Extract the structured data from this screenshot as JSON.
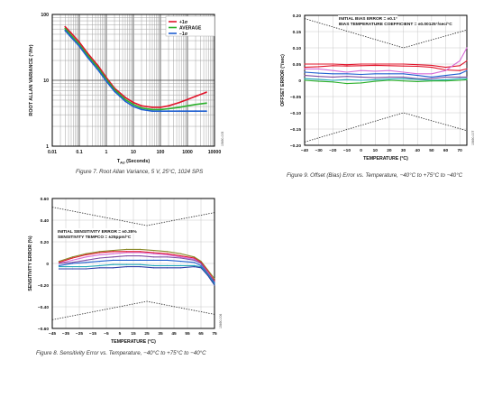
{
  "figures": [
    {
      "id": "fig7",
      "caption": "Figure 7. Root Allan Variance, 5 V, 25°C, 1024 SPS",
      "code": "15690-005"
    },
    {
      "id": "fig9",
      "caption": "Figure 9. Offset (Bias) Error vs. Temperature, −40°C to +75°C to −40°C",
      "code": "15690-007"
    },
    {
      "id": "fig8",
      "caption": "Figure 8. Sensitivity Error vs. Temperature, −40°C to +75°C to −40°C",
      "code": "15690-006"
    }
  ],
  "chart_data": [
    {
      "type": "line",
      "xscale": "log",
      "yscale": "log",
      "xlabel": "TAU (Seconds)",
      "xlabel_main": "T",
      "xlabel_sub": "AU",
      "xlabel_tail": " (Seconds)",
      "ylabel": "ROOT ALLAN VARIANCE (°/Hr)",
      "xlim": [
        0.01,
        10000
      ],
      "ylim": [
        1,
        100
      ],
      "xticks": [
        0.01,
        0.1,
        1,
        10,
        100,
        1000,
        10000
      ],
      "xtick_labels": [
        "0.01",
        "0.1",
        "1",
        "10",
        "100",
        "1000",
        "10000"
      ],
      "yticks": [
        1,
        10,
        100
      ],
      "ytick_labels": [
        "1",
        "10",
        "100"
      ],
      "grid": true,
      "legend": "top-right",
      "series": [
        {
          "name": "+1σ",
          "color": "#e0142a",
          "x": [
            0.03,
            0.05,
            0.1,
            0.2,
            0.5,
            1,
            2,
            5,
            10,
            20,
            50,
            100,
            200,
            500,
            1000,
            2000,
            5000
          ],
          "y": [
            65,
            52,
            38,
            26,
            16.5,
            11,
            7.6,
            5.5,
            4.6,
            4.1,
            3.9,
            3.9,
            4.1,
            4.6,
            5.1,
            5.7,
            6.6
          ]
        },
        {
          "name": "AVERAGE",
          "color": "#2bb02b",
          "x": [
            0.03,
            0.05,
            0.1,
            0.2,
            0.5,
            1,
            2,
            5,
            10,
            20,
            50,
            100,
            200,
            500,
            1000,
            2000,
            5000
          ],
          "y": [
            61,
            48,
            35,
            24,
            15.3,
            10.3,
            7.2,
            5.1,
            4.3,
            3.8,
            3.6,
            3.6,
            3.7,
            3.9,
            4.1,
            4.3,
            4.5
          ]
        },
        {
          "name": "−1σ",
          "color": "#1f5fd0",
          "x": [
            0.03,
            0.05,
            0.1,
            0.2,
            0.5,
            1,
            2,
            5,
            10,
            20,
            50,
            100,
            200,
            500,
            1000,
            2000,
            5000
          ],
          "y": [
            57,
            45,
            33,
            22.5,
            14.3,
            9.7,
            6.8,
            4.8,
            4.0,
            3.6,
            3.4,
            3.4,
            3.4,
            3.4,
            3.4,
            3.4,
            3.4
          ]
        }
      ]
    },
    {
      "type": "line",
      "xlabel": "TEMPERATURE (°C)",
      "ylabel": "OFFSET ERROR (°/sec)",
      "xlim": [
        -40,
        75
      ],
      "ylim": [
        -0.2,
        0.2
      ],
      "xticks": [
        -40,
        -30,
        -20,
        -10,
        0,
        10,
        20,
        30,
        40,
        50,
        60,
        70
      ],
      "xtick_labels": [
        "−40",
        "−30",
        "−20",
        "−10",
        "0",
        "10",
        "20",
        "30",
        "40",
        "50",
        "60",
        "70"
      ],
      "yticks": [
        -0.2,
        -0.15,
        -0.1,
        -0.05,
        0,
        0.05,
        0.1,
        0.15,
        0.2
      ],
      "ytick_labels": [
        "−0.20",
        "−0.15",
        "−0.10",
        "−0.05",
        "0",
        "0.05",
        "0.10",
        "0.15",
        "0.20"
      ],
      "grid": true,
      "annotations": [
        "INITIAL BIAS ERROR = ±0.1°",
        "BIAS TEMPERATURE COEFFICIENT = ±0.00125°/sec/°C"
      ],
      "limit_lines": [
        {
          "x": [
            -40,
            30,
            75
          ],
          "y": [
            0.19,
            0.1,
            0.155
          ]
        },
        {
          "x": [
            -40,
            30,
            75
          ],
          "y": [
            -0.19,
            -0.1,
            -0.155
          ]
        }
      ],
      "series": [
        {
          "color": "#e0142a",
          "x": [
            -40,
            -30,
            -20,
            -10,
            0,
            10,
            20,
            30,
            40,
            50,
            60,
            70,
            75
          ],
          "y": [
            0.05,
            0.05,
            0.05,
            0.048,
            0.05,
            0.05,
            0.05,
            0.05,
            0.048,
            0.046,
            0.04,
            0.045,
            0.06
          ]
        },
        {
          "color": "#e0142a",
          "x": [
            -40,
            -30,
            -20,
            -10,
            0,
            10,
            20,
            30,
            40,
            50,
            60,
            70,
            75
          ],
          "y": [
            0.04,
            0.042,
            0.045,
            0.044,
            0.045,
            0.046,
            0.045,
            0.044,
            0.043,
            0.04,
            0.032,
            0.03,
            0.035
          ]
        },
        {
          "color": "#d66ad6",
          "x": [
            -40,
            -30,
            -20,
            -10,
            0,
            10,
            20,
            30,
            40,
            50,
            60,
            70,
            75
          ],
          "y": [
            0.035,
            0.035,
            0.03,
            0.025,
            0.03,
            0.028,
            0.03,
            0.025,
            0.02,
            0.02,
            0.03,
            0.06,
            0.1
          ]
        },
        {
          "color": "#1f5fd0",
          "x": [
            -40,
            -30,
            -20,
            -10,
            0,
            10,
            20,
            30,
            40,
            50,
            60,
            70,
            75
          ],
          "y": [
            0.025,
            0.022,
            0.02,
            0.02,
            0.018,
            0.02,
            0.02,
            0.02,
            0.015,
            0.01,
            0.015,
            0.02,
            0.03
          ]
        },
        {
          "color": "#7d4ea6",
          "x": [
            -40,
            -30,
            -20,
            -10,
            0,
            10,
            20,
            30,
            40,
            50,
            60,
            70,
            75
          ],
          "y": [
            0.015,
            0.012,
            0.01,
            0.012,
            0.01,
            0.008,
            0.01,
            0.01,
            0.005,
            0.005,
            0.01,
            0.01,
            0.01
          ]
        },
        {
          "color": "#20a7b8",
          "x": [
            -40,
            -30,
            -20,
            -10,
            0,
            10,
            20,
            30,
            40,
            50,
            60,
            70,
            75
          ],
          "y": [
            0.005,
            0.003,
            0.0,
            0.002,
            0.0,
            0.002,
            0.004,
            0.005,
            0.003,
            0.0,
            0.002,
            0.005,
            0.005
          ]
        },
        {
          "color": "#2bb02b",
          "x": [
            -40,
            -30,
            -20,
            -10,
            0,
            10,
            20,
            30,
            40,
            50,
            60,
            70,
            75
          ],
          "y": [
            0.0,
            -0.003,
            -0.005,
            -0.01,
            -0.008,
            -0.003,
            0.0,
            -0.002,
            -0.004,
            -0.002,
            -0.002,
            0.0,
            0.002
          ]
        }
      ]
    },
    {
      "type": "line",
      "xlabel": "TEMPERATURE (°C)",
      "ylabel": "SENSITIVITY ERROR (%)",
      "xlim": [
        -45,
        75
      ],
      "ylim": [
        -0.6,
        0.6
      ],
      "xticks": [
        -45,
        -35,
        -25,
        -15,
        -5,
        5,
        15,
        25,
        35,
        45,
        55,
        65,
        75
      ],
      "xtick_labels": [
        "−45",
        "−35",
        "−25",
        "−15",
        "−5",
        "5",
        "15",
        "25",
        "35",
        "45",
        "55",
        "65",
        "75"
      ],
      "yticks": [
        -0.6,
        -0.4,
        -0.2,
        0,
        0.2,
        0.4,
        0.6
      ],
      "ytick_labels": [
        "−0.60",
        "−0.40",
        "−0.20",
        "0",
        "0.20",
        "0.40",
        "0.60"
      ],
      "grid": true,
      "annotations": [
        "INITIAL SENSITIVITY ERROR = ±0.35%",
        "SENSITIVITY TEMPCO = ±25ppm/°C"
      ],
      "limit_lines": [
        {
          "x": [
            -45,
            25,
            75
          ],
          "y": [
            0.52,
            0.35,
            0.47
          ]
        },
        {
          "x": [
            -45,
            25,
            75
          ],
          "y": [
            -0.52,
            -0.35,
            -0.47
          ]
        }
      ],
      "series": [
        {
          "color": "#8a8a2a",
          "x": [
            -40,
            -30,
            -20,
            -10,
            0,
            10,
            20,
            30,
            40,
            50,
            60,
            65,
            70,
            75
          ],
          "y": [
            0.02,
            0.06,
            0.09,
            0.11,
            0.12,
            0.13,
            0.13,
            0.12,
            0.11,
            0.09,
            0.06,
            0.02,
            -0.06,
            -0.14
          ]
        },
        {
          "color": "#e0142a",
          "x": [
            -40,
            -30,
            -20,
            -10,
            0,
            10,
            20,
            30,
            40,
            50,
            60,
            65,
            70,
            75
          ],
          "y": [
            0.01,
            0.05,
            0.08,
            0.1,
            0.11,
            0.11,
            0.11,
            0.1,
            0.09,
            0.07,
            0.05,
            0.01,
            -0.07,
            -0.16
          ]
        },
        {
          "color": "#d66ad6",
          "x": [
            -40,
            -30,
            -20,
            -10,
            0,
            10,
            20,
            30,
            40,
            50,
            60,
            65,
            70,
            75
          ],
          "y": [
            0.0,
            0.03,
            0.06,
            0.08,
            0.09,
            0.1,
            0.1,
            0.09,
            0.08,
            0.06,
            0.04,
            0.0,
            -0.08,
            -0.17
          ]
        },
        {
          "color": "#7d4ea6",
          "x": [
            -40,
            -30,
            -20,
            -10,
            0,
            10,
            20,
            30,
            40,
            50,
            60,
            65,
            70,
            75
          ],
          "y": [
            0.0,
            0.01,
            0.03,
            0.05,
            0.06,
            0.07,
            0.07,
            0.06,
            0.06,
            0.05,
            0.03,
            0.0,
            -0.09,
            -0.17
          ]
        },
        {
          "color": "#1f5fd0",
          "x": [
            -40,
            -30,
            -20,
            -10,
            0,
            10,
            20,
            30,
            40,
            50,
            60,
            65,
            70,
            75
          ],
          "y": [
            -0.02,
            0.0,
            0.01,
            0.02,
            0.03,
            0.03,
            0.03,
            0.03,
            0.03,
            0.02,
            0.01,
            -0.02,
            -0.1,
            -0.18
          ]
        },
        {
          "color": "#20a7b8",
          "x": [
            -40,
            -30,
            -20,
            -10,
            0,
            10,
            20,
            30,
            40,
            50,
            60,
            65,
            70,
            75
          ],
          "y": [
            -0.03,
            -0.03,
            -0.03,
            -0.02,
            -0.01,
            -0.01,
            -0.01,
            -0.02,
            -0.02,
            -0.02,
            -0.02,
            -0.03,
            -0.1,
            -0.19
          ]
        },
        {
          "color": "#2f3fa8",
          "x": [
            -40,
            -30,
            -20,
            -10,
            0,
            10,
            20,
            30,
            40,
            50,
            60,
            65,
            70,
            75
          ],
          "y": [
            -0.05,
            -0.05,
            -0.05,
            -0.04,
            -0.04,
            -0.03,
            -0.03,
            -0.04,
            -0.04,
            -0.04,
            -0.03,
            -0.04,
            -0.11,
            -0.2
          ]
        }
      ]
    }
  ]
}
